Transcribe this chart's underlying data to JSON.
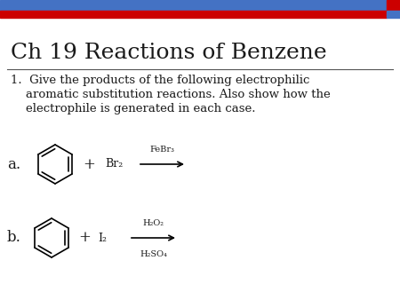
{
  "title": "Ch 19 Reactions of Benzene",
  "header_blue": "#4472C4",
  "header_red": "#CC0000",
  "bg_color": "#FFFFFF",
  "text_color": "#1a1a1a",
  "question_line1": "1.  Give the products of the following electrophilic",
  "question_line2": "    aromatic substitution reactions. Also show how the",
  "question_line3": "    electrophile is generated in each case.",
  "label_a": "a.",
  "label_b": "b.",
  "reaction_a_reagent": "Br₂",
  "reaction_a_catalyst": "FeBr₃",
  "reaction_b_reagent": "I₂",
  "reaction_b_above": "H₂O₂",
  "reaction_b_below": "H₂SO₄",
  "title_fontsize": 18,
  "body_fontsize": 9.5,
  "label_fontsize": 12,
  "chem_fontsize": 9,
  "catalyst_fontsize": 7
}
